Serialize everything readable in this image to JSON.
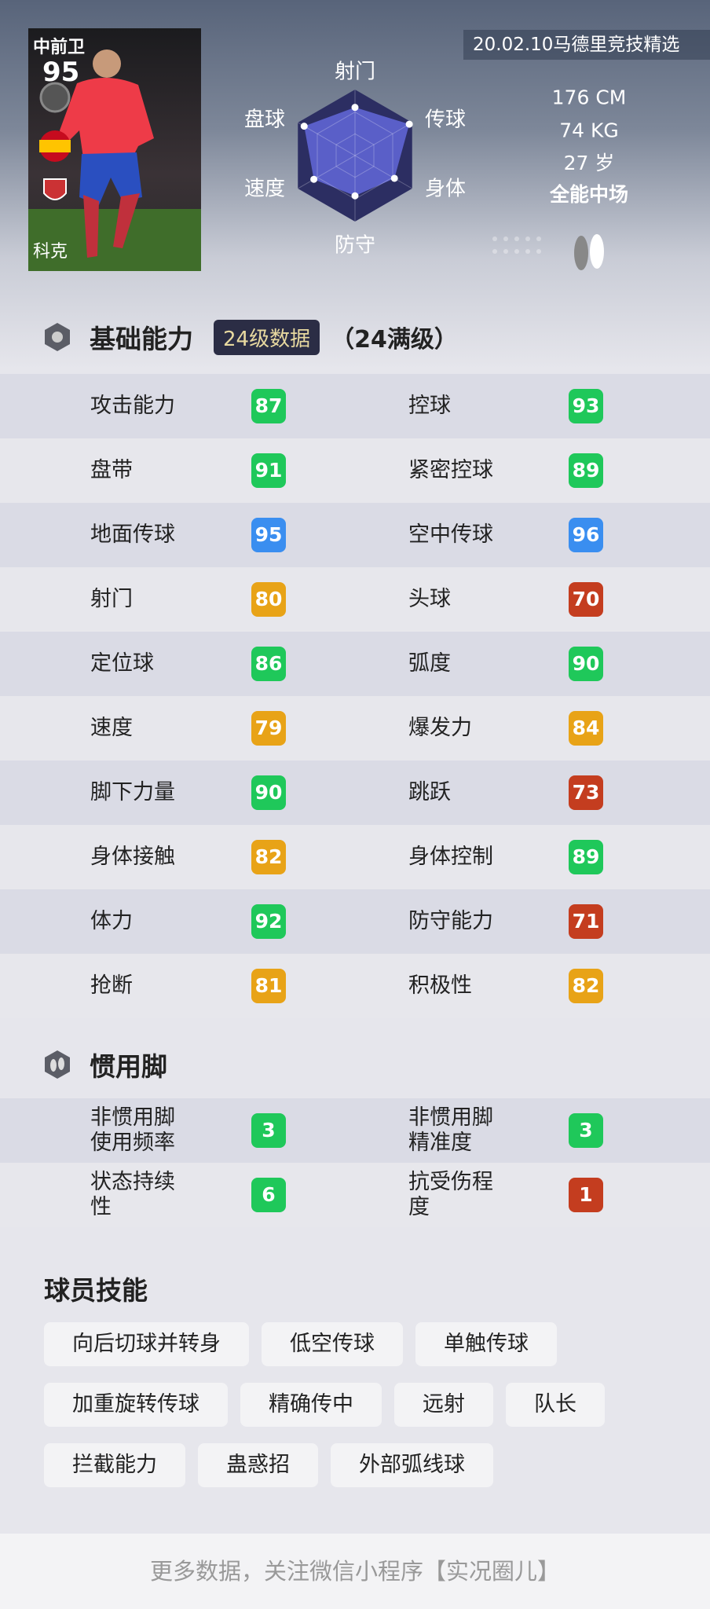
{
  "player": {
    "position": "中前卫",
    "overall": "95",
    "name": "科克",
    "edition": "20.02.10马德里竞技精选",
    "height": "176 CM",
    "weight": "74 KG",
    "age": "27 岁",
    "style": "全能中场"
  },
  "radar": {
    "labels": [
      "射门",
      "传球",
      "身体",
      "防守",
      "速度",
      "盘球"
    ],
    "values": [
      73,
      95,
      69,
      61,
      72,
      89
    ],
    "fill_color": "#5a5fc8",
    "outer_color": "#2c2e62"
  },
  "basic": {
    "title": "基础能力",
    "level_badge": "24级数据",
    "level_note": "（24满级）"
  },
  "colors": {
    "green": "#1fc85a",
    "blue": "#3a8ef0",
    "orange": "#e8a317",
    "red": "#c43d1f"
  },
  "stats": [
    [
      {
        "label": "攻击能力",
        "value": "87",
        "color": "green"
      },
      {
        "label": "控球",
        "value": "93",
        "color": "green"
      }
    ],
    [
      {
        "label": "盘带",
        "value": "91",
        "color": "green"
      },
      {
        "label": "紧密控球",
        "value": "89",
        "color": "green"
      }
    ],
    [
      {
        "label": "地面传球",
        "value": "95",
        "color": "blue"
      },
      {
        "label": "空中传球",
        "value": "96",
        "color": "blue"
      }
    ],
    [
      {
        "label": "射门",
        "value": "80",
        "color": "orange"
      },
      {
        "label": "头球",
        "value": "70",
        "color": "red"
      }
    ],
    [
      {
        "label": "定位球",
        "value": "86",
        "color": "green"
      },
      {
        "label": "弧度",
        "value": "90",
        "color": "green"
      }
    ],
    [
      {
        "label": "速度",
        "value": "79",
        "color": "orange"
      },
      {
        "label": "爆发力",
        "value": "84",
        "color": "orange"
      }
    ],
    [
      {
        "label": "脚下力量",
        "value": "90",
        "color": "green"
      },
      {
        "label": "跳跃",
        "value": "73",
        "color": "red"
      }
    ],
    [
      {
        "label": "身体接触",
        "value": "82",
        "color": "orange"
      },
      {
        "label": "身体控制",
        "value": "89",
        "color": "green"
      }
    ],
    [
      {
        "label": "体力",
        "value": "92",
        "color": "green"
      },
      {
        "label": "防守能力",
        "value": "71",
        "color": "red"
      }
    ],
    [
      {
        "label": "抢断",
        "value": "81",
        "color": "orange"
      },
      {
        "label": "积极性",
        "value": "82",
        "color": "orange"
      }
    ]
  ],
  "foot": {
    "title": "惯用脚",
    "stats": [
      [
        {
          "label": "非惯用脚\n使用频率",
          "value": "3",
          "color": "green"
        },
        {
          "label": "非惯用脚\n精准度",
          "value": "3",
          "color": "green"
        }
      ],
      [
        {
          "label": "状态持续\n性",
          "value": "6",
          "color": "green"
        },
        {
          "label": "抗受伤程\n度",
          "value": "1",
          "color": "red"
        }
      ]
    ]
  },
  "skills": {
    "title": "球员技能",
    "rows": [
      [
        "向后切球并转身",
        "低空传球",
        "单触传球"
      ],
      [
        "加重旋转传球",
        "精确传中",
        "远射",
        "队长"
      ],
      [
        "拦截能力",
        "蛊惑招",
        "外部弧线球"
      ]
    ]
  },
  "footer": "更多数据，关注微信小程序【实况圈儿】"
}
